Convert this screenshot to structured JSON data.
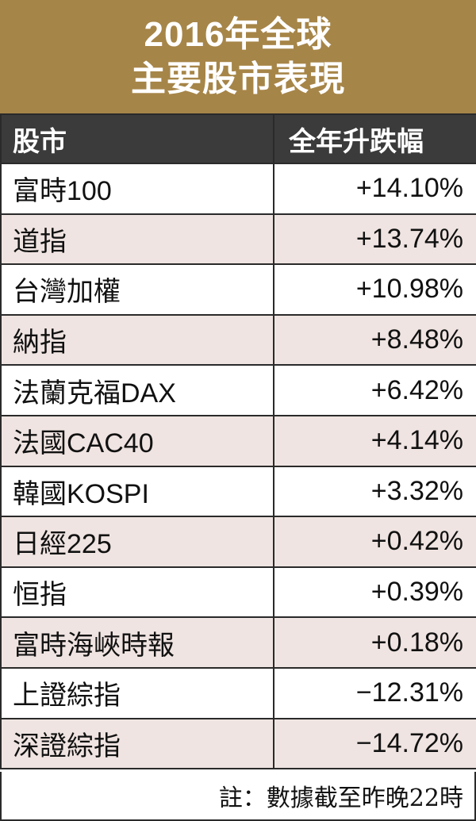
{
  "colors": {
    "title_bg": "#a68548",
    "header_bg": "#3b3b3b",
    "row_shade": "#efe4e1",
    "border": "#2a2a2a"
  },
  "title_line1": "2016年全球",
  "title_line2": "主要股市表現",
  "chart_data": {
    "type": "table",
    "title": "2016年全球主要股市表現",
    "columns": [
      "股市",
      "全年升跌幅"
    ],
    "rows": [
      [
        "富時100",
        "+14.10%"
      ],
      [
        "道指",
        "+13.74%"
      ],
      [
        "台灣加權",
        "+10.98%"
      ],
      [
        "納指",
        "+8.48%"
      ],
      [
        "法蘭克福DAX",
        "+6.42%"
      ],
      [
        "法國CAC40",
        "+4.14%"
      ],
      [
        "韓國KOSPI",
        "+3.32%"
      ],
      [
        "日經225",
        "+0.42%"
      ],
      [
        "恒指",
        "+0.39%"
      ],
      [
        "富時海峽時報",
        "+0.18%"
      ],
      [
        "上證綜指",
        "−12.31%"
      ],
      [
        "深證綜指",
        "−14.72%"
      ]
    ],
    "values": [
      14.1,
      13.74,
      10.98,
      8.48,
      6.42,
      4.14,
      3.32,
      0.42,
      0.39,
      0.18,
      -12.31,
      -14.72
    ]
  },
  "note": "註：數據截至昨晚22時"
}
